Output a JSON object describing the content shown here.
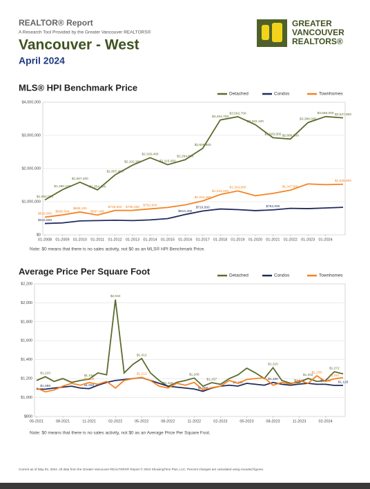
{
  "header": {
    "report": "REALTOR® Report",
    "subtitle": "A Research Tool Provided by the Greater Vancouver REALTORS®",
    "region": "Vancouver - West",
    "date": "April 2024"
  },
  "logo": {
    "line1": "GREATER",
    "line2": "VANCOUVER",
    "line3": "REALTORS®"
  },
  "chart_data": [
    {
      "type": "line",
      "title": "MLS® HPI Benchmark Price",
      "legend": "top-right",
      "grid": true,
      "categories": [
        "01-2008",
        "01-2009",
        "01-2010",
        "01-2011",
        "01-2012",
        "01-2013",
        "01-2014",
        "01-2015",
        "01-2016",
        "01-2017",
        "01-2018",
        "01-2019",
        "01-2020",
        "01-2021",
        "01-2022",
        "01-2023",
        "01-2024",
        null
      ],
      "ylim": [
        0,
        4000000
      ],
      "yticks": [
        {
          "value": 0,
          "label": "$0"
        },
        {
          "value": 1000000,
          "label": "$1,000,000"
        },
        {
          "value": 2000000,
          "label": "$2,000,000"
        },
        {
          "value": 3000000,
          "label": "$3,000,000"
        },
        {
          "value": 4000000,
          "label": "$4,000,000"
        }
      ],
      "series": [
        {
          "name": "Detached",
          "color": "#5b6b2d",
          "values": [
            1052000,
            1360100,
            1587400,
            1354300,
            1807400,
            2102300,
            2326400,
            2115000,
            2264800,
            2609600,
            3464700,
            3562700,
            3322100,
            2929500,
            2889600,
            3386000,
            3566000,
            3527900
          ],
          "value_labels": [
            "$1,052,000",
            "$1,360,100",
            "$1,587,400",
            "$1,354,300",
            "$1,807,400",
            "$2,102,300",
            "$2,326,400",
            "$2,115,000",
            "$2,264,800",
            "$2,609,600",
            "$3,464,700",
            "$3,562,700",
            "$3,322,100",
            "$2,929,500",
            "$2,889,600",
            "$3,386,000",
            "$3,566,000",
            "$3,527,900"
          ]
        },
        {
          "name": "Condos",
          "color": "#1f2a5c",
          "values": [
            342500,
            360000,
            420000,
            430000,
            440000,
            430000,
            450000,
            490000,
            613400,
            719500,
            780000,
            760000,
            730000,
            752000,
            800000,
            790000,
            810000,
            830000
          ],
          "value_labels": [
            "$342,500",
            null,
            null,
            null,
            null,
            null,
            null,
            null,
            "$613,400",
            "$719,500",
            null,
            null,
            null,
            "$752,000",
            null,
            null,
            null,
            null
          ]
        },
        {
          "name": "Townhomes",
          "color": "#f58220",
          "values": [
            532600,
            600500,
            688100,
            597400,
            735500,
            738300,
            782500,
            826000,
            902900,
            1024400,
            1215000,
            1324600,
            1179500,
            1250800,
            1347800,
            1536400,
            1513800,
            1525800
          ],
          "value_labels": [
            "$532,600",
            "$600,500",
            "$688,100",
            "$597,400",
            "$735,500",
            "$738,300",
            "$782,500",
            null,
            null,
            "$1,024,400",
            "$1,215,000",
            "$1,324,600",
            null,
            null,
            "$1,347,800",
            null,
            null,
            "$1,525,800"
          ]
        }
      ],
      "note": "Note: $0 means that there is no sales activity, not $0 as an MLS® HPI Benchmark Price."
    },
    {
      "type": "line",
      "title": "Average Price Per Square Foot",
      "legend": "top-right",
      "grid": true,
      "categories": [
        "05-2021",
        null,
        null,
        "08-2021",
        null,
        null,
        "11-2021",
        null,
        null,
        "02-2022",
        null,
        null,
        "05-2022",
        null,
        null,
        "08-2022",
        null,
        null,
        "11-2022",
        null,
        null,
        "02-2023",
        null,
        null,
        "05-2023",
        null,
        null,
        "08-2023",
        null,
        null,
        "11-2023",
        null,
        null,
        "02-2024",
        null,
        null
      ],
      "ylim": [
        800,
        2200
      ],
      "yticks": [
        {
          "value": 800,
          "label": "$800"
        },
        {
          "value": 1000,
          "label": "$1,000"
        },
        {
          "value": 1200,
          "label": "$1,200"
        },
        {
          "value": 1400,
          "label": "$1,400"
        },
        {
          "value": 1600,
          "label": "$1,600"
        },
        {
          "value": 1800,
          "label": "$1,800"
        },
        {
          "value": 2000,
          "label": "$2,000"
        },
        {
          "value": 2200,
          "label": "$2,200"
        }
      ],
      "series": [
        {
          "name": "Detached",
          "color": "#5b6b2d",
          "values": [
            1180,
            1220,
            1170,
            1200,
            1160,
            1180,
            1194,
            1260,
            1240,
            2034,
            1260,
            1350,
            1412,
            1260,
            1180,
            1116,
            1160,
            1180,
            1206,
            1120,
            1157,
            1140,
            1200,
            1240,
            1310,
            1260,
            1200,
            1315,
            1180,
            1150,
            1160,
            1202,
            1170,
            1180,
            1272,
            1250
          ],
          "value_labels": [
            null,
            "$1,220",
            null,
            null,
            null,
            null,
            "$1,194",
            null,
            null,
            "$2,034",
            null,
            null,
            "$1,412",
            null,
            null,
            "$1,116",
            null,
            null,
            "$1,206",
            null,
            "$1,157",
            null,
            null,
            null,
            null,
            null,
            null,
            "$1,315",
            null,
            null,
            null,
            "$1,202",
            null,
            null,
            "$1,272",
            null
          ]
        },
        {
          "name": "Condos",
          "color": "#1f2a5c",
          "values": [
            1090,
            1088,
            1100,
            1110,
            1120,
            1100,
            1094,
            1130,
            1160,
            1180,
            1190,
            1200,
            1210,
            1180,
            1150,
            1120,
            1110,
            1100,
            1090,
            1066,
            1100,
            1120,
            1130,
            1121,
            1150,
            1140,
            1130,
            1160,
            1140,
            1130,
            1142,
            1150,
            1140,
            1140,
            1128,
            1128
          ],
          "value_labels": [
            null,
            "$1,088",
            null,
            null,
            null,
            null,
            "$1,094",
            null,
            null,
            null,
            null,
            null,
            null,
            null,
            null,
            null,
            null,
            null,
            null,
            "$1,066",
            null,
            null,
            null,
            "$1,121",
            null,
            null,
            null,
            "$1,160",
            null,
            null,
            "$1,142",
            null,
            null,
            "$1,140",
            null,
            "$1,128"
          ]
        },
        {
          "name": "Townhomes",
          "color": "#f58220",
          "values": [
            1100,
            1060,
            1080,
            1120,
            1150,
            1130,
            1158,
            1140,
            1170,
            1100,
            1180,
            1200,
            1213,
            1180,
            1120,
            1100,
            1150,
            1130,
            1160,
            1080,
            1104,
            1120,
            1180,
            1150,
            1190,
            1200,
            1208,
            1130,
            1160,
            1140,
            1180,
            1150,
            1230,
            1170,
            1197,
            1210
          ],
          "value_labels": [
            null,
            null,
            null,
            null,
            null,
            null,
            "$1,158",
            null,
            null,
            null,
            null,
            null,
            "$1,213",
            null,
            null,
            null,
            null,
            null,
            null,
            null,
            null,
            null,
            null,
            null,
            null,
            null,
            null,
            null,
            null,
            null,
            null,
            null,
            "$1,230",
            null,
            "$1,197",
            null
          ]
        }
      ],
      "note": "Note: $0 means that there is no sales activity, not $0 as an Average Price Per Square Foot."
    }
  ],
  "footer": "Current as of May 02, 2024. All data from the Greater Vancouver REALTORS® Report © 2024 ShowingTime Plus, LLC. Percent changes are calculated using rounded figures."
}
